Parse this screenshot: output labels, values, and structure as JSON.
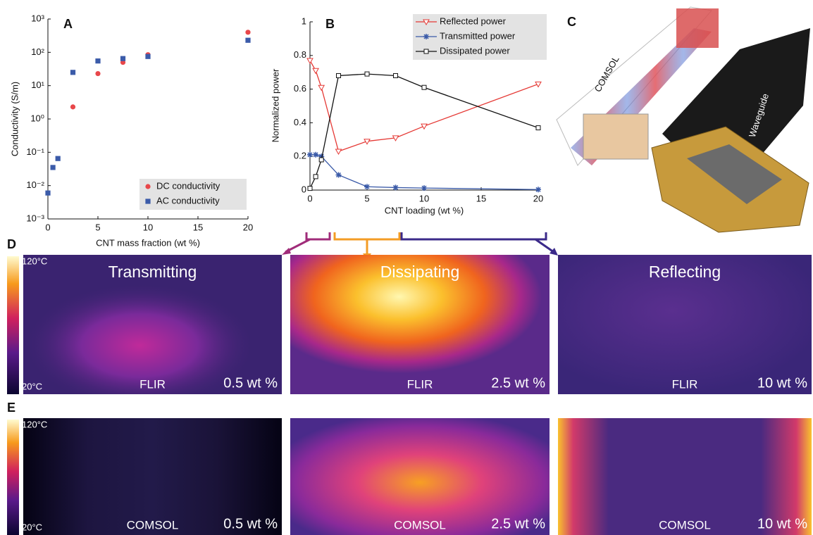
{
  "chart_data": [
    {
      "type": "scatter",
      "panel_label": "A",
      "xlabel": "CNT mass fraction (wt %)",
      "ylabel": "Conductivity (S/m)",
      "log_y": true,
      "xlim": [
        0,
        20
      ],
      "xticks": [
        0,
        5,
        10,
        15,
        20
      ],
      "ylim": [
        0.001,
        1000
      ],
      "yticks": [
        {
          "value": 0.001,
          "label": "10⁻³"
        },
        {
          "value": 0.01,
          "label": "10⁻²"
        },
        {
          "value": 0.1,
          "label": "10⁻¹"
        },
        {
          "value": 1,
          "label": "10⁰"
        },
        {
          "value": 10,
          "label": "10¹"
        },
        {
          "value": 100,
          "label": "10²"
        },
        {
          "value": 1000,
          "label": "10³"
        }
      ],
      "legend": "lower right",
      "series": [
        {
          "name": "DC conductivity",
          "color": "#e8474a",
          "marker": "circle",
          "x": [
            2.5,
            5,
            7.5,
            10,
            20
          ],
          "values": [
            2.3,
            23,
            50,
            85,
            400
          ]
        },
        {
          "name": "AC conductivity",
          "color": "#3b5ba9",
          "marker": "square",
          "x": [
            0,
            0.5,
            1,
            2.5,
            5,
            7.5,
            10,
            20
          ],
          "values": [
            0.006,
            0.035,
            0.065,
            25,
            55,
            65,
            75,
            230
          ]
        }
      ]
    },
    {
      "type": "line",
      "panel_label": "B",
      "xlabel": "CNT loading (wt %)",
      "ylabel": "Normalized power",
      "x": [
        0,
        0.5,
        1,
        2.5,
        5,
        7.5,
        10,
        20
      ],
      "xlim": [
        0,
        20
      ],
      "xticks": [
        0,
        5,
        10,
        15,
        20
      ],
      "ylim": [
        0,
        1
      ],
      "yticks": [
        0,
        0.2,
        0.4,
        0.6,
        0.8,
        1
      ],
      "legend": "upper right",
      "series": [
        {
          "name": "Reflected power",
          "color": "#e53935",
          "marker": "triangle-down",
          "values": [
            0.77,
            0.71,
            0.61,
            0.23,
            0.29,
            0.31,
            0.38,
            0.63
          ]
        },
        {
          "name": "Transmitted power",
          "color": "#3a5aa8",
          "marker": "star",
          "values": [
            0.21,
            0.21,
            0.2,
            0.09,
            0.02,
            0.015,
            0.012,
            0.003
          ]
        },
        {
          "name": "Dissipated power",
          "color": "#111111",
          "marker": "square-open",
          "values": [
            0.01,
            0.08,
            0.18,
            0.68,
            0.69,
            0.68,
            0.61,
            0.37
          ]
        }
      ]
    }
  ],
  "panel_c": {
    "label": "C",
    "simulation": "COMSOL",
    "device": "Waveguide"
  },
  "panel_d": {
    "label": "D",
    "scale_max": "120°C",
    "scale_min": "20°C",
    "images": [
      {
        "title": "Transmitting",
        "source": "FLIR",
        "loading": "0.5 wt %"
      },
      {
        "title": "Dissipating",
        "source": "FLIR",
        "loading": "2.5 wt %"
      },
      {
        "title": "Reflecting",
        "source": "FLIR",
        "loading": "10 wt %"
      }
    ]
  },
  "panel_e": {
    "label": "E",
    "scale_max": "120°C",
    "scale_min": "20°C",
    "images": [
      {
        "source": "COMSOL",
        "loading": "0.5 wt %"
      },
      {
        "source": "COMSOL",
        "loading": "2.5 wt %"
      },
      {
        "source": "COMSOL",
        "loading": "10 wt %"
      }
    ]
  }
}
